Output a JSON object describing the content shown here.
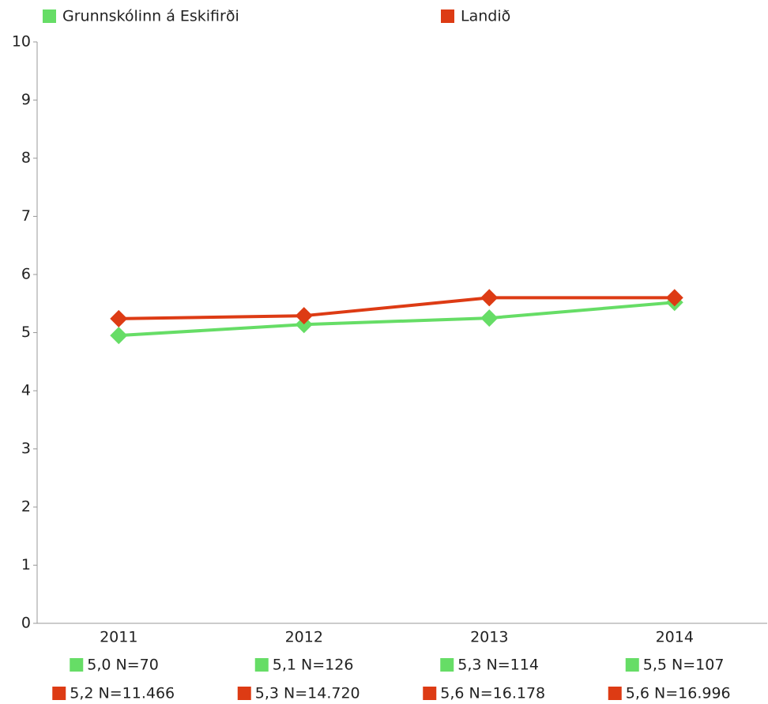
{
  "chart_data": {
    "type": "line",
    "categories": [
      "2011",
      "2012",
      "2013",
      "2014"
    ],
    "series": [
      {
        "name": "Grunnskólinn á Eskifirði",
        "color": "#66dd66",
        "values": [
          4.95,
          5.14,
          5.25,
          5.52
        ],
        "value_labels": [
          "5,0 N=70",
          "5,1 N=126",
          "5,3 N=114",
          "5,5 N=107"
        ]
      },
      {
        "name": "Landið",
        "color": "#dd3b14",
        "values": [
          5.24,
          5.29,
          5.6,
          5.6
        ],
        "value_labels": [
          "5,2 N=11.466",
          "5,3 N=14.720",
          "5,6 N=16.178",
          "5,6 N=16.996"
        ]
      }
    ],
    "ylim": [
      0,
      10
    ],
    "yticks": [
      0,
      1,
      2,
      3,
      4,
      5,
      6,
      7,
      8,
      9,
      10
    ]
  }
}
